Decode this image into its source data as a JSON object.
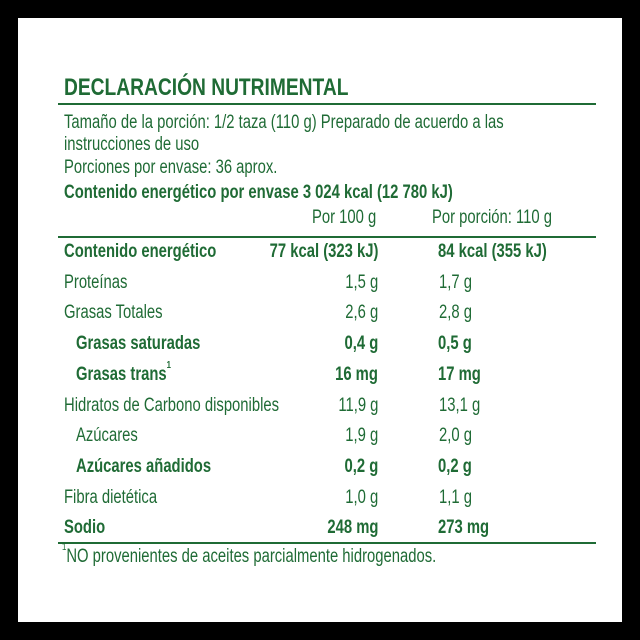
{
  "title": "DECLARACIÓN NUTRIMENTAL",
  "serving_size_line1": "Tamaño de la porción: 1/2 taza (110 g) Preparado de acuerdo a las",
  "serving_size_line2": "instrucciones de uso",
  "servings_per_container": "Porciones por envase: 36 aprox.",
  "energy_per_container": "Contenido energético por envase 3 024 kcal (12 780 kJ)",
  "columns": {
    "per100": "Por 100 g",
    "per_serving": "Por porción: 110 g"
  },
  "rows": [
    {
      "label": "Contenido energético",
      "per100": "77 kcal (323 kJ)",
      "per_serving": "84 kcal (355 kJ)"
    },
    {
      "label": "Proteínas",
      "per100": "1,5 g",
      "per_serving": "1,7 g"
    },
    {
      "label": "Grasas Totales",
      "per100": "2,6 g",
      "per_serving": "2,8 g"
    },
    {
      "label": "Grasas saturadas",
      "per100": "0,4 g",
      "per_serving": "0,5 g"
    },
    {
      "label": "Grasas trans",
      "sup": "1",
      "per100": "16 mg",
      "per_serving": "17 mg"
    },
    {
      "label": "Hidratos de Carbono disponibles",
      "per100": "11,9 g",
      "per_serving": "13,1 g"
    },
    {
      "label": "Azúcares",
      "per100": "1,9 g",
      "per_serving": "2,0 g"
    },
    {
      "label": "Azúcares añadidos",
      "per100": "0,2 g",
      "per_serving": "0,2 g"
    },
    {
      "label": "Fibra dietética",
      "per100": "1,0 g",
      "per_serving": "1,1 g"
    },
    {
      "label": "Sodio",
      "per100": "248 mg",
      "per_serving": "273 mg"
    }
  ],
  "footnote_mark": "1",
  "footnote": "NO provenientes de aceites parcialmente hidrogenados.",
  "colors": {
    "text": "#1f6b35",
    "background": "#ffffff",
    "border": "#000000"
  }
}
